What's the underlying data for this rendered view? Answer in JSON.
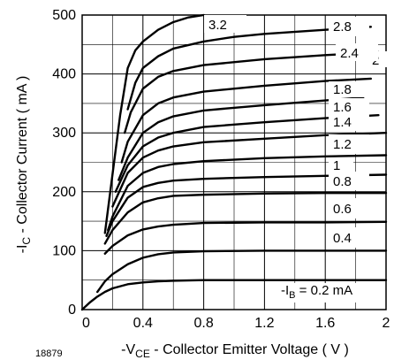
{
  "figure_id": "18879",
  "chart_data": {
    "type": "line",
    "title": "",
    "xlabel": {
      "prefix": "-V",
      "sub": "CE",
      "suffix": "  - Collector Emitter Voltage ( V )"
    },
    "ylabel": {
      "prefix": "-I",
      "sub": "C",
      "suffix": " - Collector Current ( mA )"
    },
    "xlim": [
      0,
      2
    ],
    "ylim": [
      0,
      500
    ],
    "x_ticks": [
      {
        "value": 0,
        "label": "0"
      },
      {
        "value": 0.4,
        "label": "0.4"
      },
      {
        "value": 0.8,
        "label": "0.8"
      },
      {
        "value": 1.2,
        "label": "1.2"
      },
      {
        "value": 1.6,
        "label": "1.6"
      },
      {
        "value": 2,
        "label": "2"
      }
    ],
    "y_ticks": [
      {
        "value": 0,
        "label": "0"
      },
      {
        "value": 100,
        "label": "100"
      },
      {
        "value": 200,
        "label": "200"
      },
      {
        "value": 300,
        "label": "300"
      },
      {
        "value": 400,
        "label": "400"
      },
      {
        "value": 500,
        "label": "500"
      }
    ],
    "grid": true,
    "grid_x_step": 0.2,
    "grid_y_step": 50,
    "series": [
      {
        "name": "0.2",
        "label": {
          "prefix": "-I",
          "sub": "B",
          "suffix": " = 0.2 mA"
        },
        "x": [
          0,
          0.05,
          0.1,
          0.15,
          0.2,
          0.3,
          0.4,
          0.5,
          0.6,
          0.8,
          1.2,
          1.6,
          2.0
        ],
        "y": [
          0,
          12,
          22,
          30,
          36,
          43,
          46,
          48,
          49,
          50,
          50,
          50,
          50
        ]
      },
      {
        "name": "0.4",
        "label": {
          "prefix": "",
          "sub": "",
          "suffix": "0.4"
        },
        "x": [
          0.1,
          0.15,
          0.2,
          0.3,
          0.4,
          0.5,
          0.6,
          0.8,
          1.2,
          1.6,
          2.0
        ],
        "y": [
          30,
          48,
          60,
          77,
          88,
          94,
          97,
          99,
          100,
          100,
          100
        ]
      },
      {
        "name": "0.6",
        "label": {
          "prefix": "",
          "sub": "",
          "suffix": "0.6"
        },
        "x": [
          0.15,
          0.2,
          0.3,
          0.4,
          0.5,
          0.6,
          0.8,
          1.2,
          1.6,
          2.0
        ],
        "y": [
          95,
          108,
          126,
          136,
          141,
          144,
          147,
          148,
          148,
          149
        ]
      },
      {
        "name": "0.8",
        "label": {
          "prefix": "",
          "sub": "",
          "suffix": "0.8"
        },
        "x": [
          0.15,
          0.2,
          0.3,
          0.4,
          0.5,
          0.6,
          0.8,
          1.2,
          1.6,
          2.0
        ],
        "y": [
          112,
          135,
          165,
          182,
          189,
          193,
          195,
          197,
          198,
          198
        ]
      },
      {
        "name": "1",
        "label": {
          "prefix": "",
          "sub": "",
          "suffix": "1"
        },
        "x": [
          0.16,
          0.2,
          0.3,
          0.4,
          0.5,
          0.6,
          0.8,
          1.2,
          1.6,
          2.0
        ],
        "y": [
          125,
          150,
          190,
          208,
          215,
          219,
          222,
          225,
          227,
          229
        ]
      },
      {
        "name": "1.2",
        "label": {
          "prefix": "",
          "sub": "",
          "suffix": "1.2"
        },
        "x": [
          0.17,
          0.2,
          0.3,
          0.4,
          0.5,
          0.6,
          0.8,
          1.2,
          1.6,
          2.0
        ],
        "y": [
          135,
          158,
          210,
          232,
          242,
          247,
          252,
          257,
          260,
          262
        ]
      },
      {
        "name": "1.4",
        "label": {
          "prefix": "",
          "sub": "",
          "suffix": "1.4"
        },
        "x": [
          0.2,
          0.3,
          0.4,
          0.5,
          0.6,
          0.8,
          1.2,
          1.6,
          2.0
        ],
        "y": [
          175,
          232,
          258,
          270,
          277,
          284,
          290,
          296,
          300
        ]
      },
      {
        "name": "1.6",
        "label": {
          "prefix": "",
          "sub": "",
          "suffix": "1.6"
        },
        "x": [
          0.22,
          0.3,
          0.4,
          0.5,
          0.6,
          0.8,
          1.2,
          1.6,
          1.95
        ],
        "y": [
          200,
          245,
          277,
          292,
          300,
          310,
          318,
          325,
          330
        ]
      },
      {
        "name": "1.8",
        "label": {
          "prefix": "",
          "sub": "",
          "suffix": "1.8"
        },
        "x": [
          0.24,
          0.3,
          0.4,
          0.5,
          0.6,
          0.8,
          1.2,
          1.6,
          1.85
        ],
        "y": [
          220,
          258,
          300,
          318,
          328,
          338,
          347,
          355,
          360
        ]
      },
      {
        "name": "2",
        "label": {
          "prefix": "",
          "sub": "",
          "suffix": "2"
        },
        "x": [
          0.26,
          0.3,
          0.4,
          0.5,
          0.6,
          0.8,
          1.2,
          1.6,
          1.9
        ],
        "y": [
          250,
          285,
          330,
          350,
          360,
          370,
          380,
          388,
          392
        ]
      },
      {
        "name": "2.4",
        "label": {
          "prefix": "",
          "sub": "",
          "suffix": "2.4"
        },
        "x": [
          0.28,
          0.32,
          0.4,
          0.5,
          0.6,
          0.8,
          1.2,
          1.6,
          1.95
        ],
        "y": [
          300,
          335,
          375,
          395,
          405,
          415,
          425,
          432,
          437
        ]
      },
      {
        "name": "2.8",
        "label": {
          "prefix": "",
          "sub": "",
          "suffix": "2.8"
        },
        "x": [
          0.3,
          0.35,
          0.4,
          0.5,
          0.6,
          0.8,
          1.0,
          1.2,
          1.6,
          1.9
        ],
        "y": [
          340,
          385,
          410,
          430,
          443,
          455,
          463,
          468,
          475,
          480
        ]
      },
      {
        "name": "3.2",
        "label": {
          "prefix": "",
          "sub": "",
          "suffix": "3.2"
        },
        "x": [
          0.15,
          0.2,
          0.25,
          0.3,
          0.35,
          0.4,
          0.5,
          0.6,
          0.7,
          0.8
        ],
        "y": [
          130,
          230,
          330,
          410,
          440,
          455,
          475,
          488,
          496,
          500
        ]
      }
    ]
  }
}
